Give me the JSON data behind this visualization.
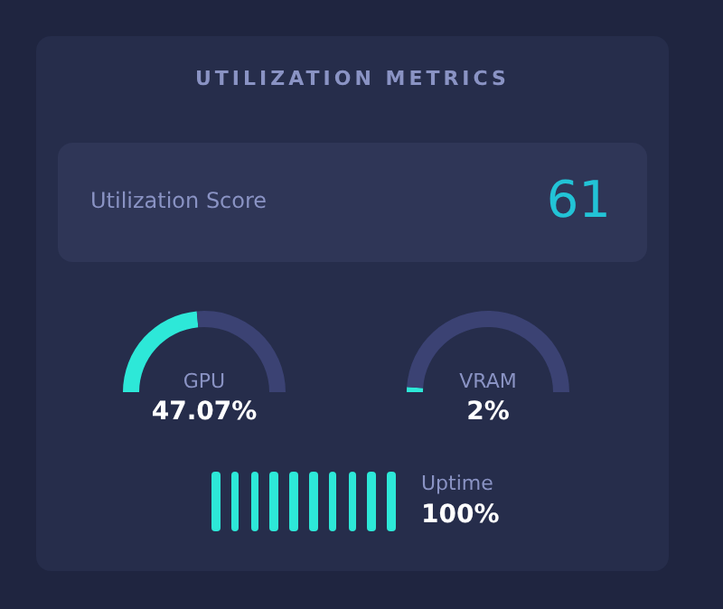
{
  "chart_data": [
    {
      "type": "other",
      "title": "UTILIZATION METRICS",
      "categories": [
        "Utilization Score"
      ],
      "values": [
        61
      ],
      "data_labels": true
    },
    {
      "type": "donut",
      "title": "GPU",
      "categories": [
        null,
        null
      ],
      "values": [
        47.07,
        52.93
      ],
      "colors": [
        "#2de8d8",
        "#3b4273"
      ],
      "annotations": [
        "47.07%"
      ]
    },
    {
      "type": "donut",
      "title": "VRAM",
      "categories": [
        null,
        null
      ],
      "values": [
        2,
        98
      ],
      "colors": [
        "#2de8d8",
        "#3b4273"
      ],
      "annotations": [
        "2%"
      ]
    },
    {
      "type": "other",
      "title": "Uptime",
      "values": [
        100
      ],
      "value_labels": [
        "100%"
      ],
      "color": "#2de8d8"
    }
  ]
}
